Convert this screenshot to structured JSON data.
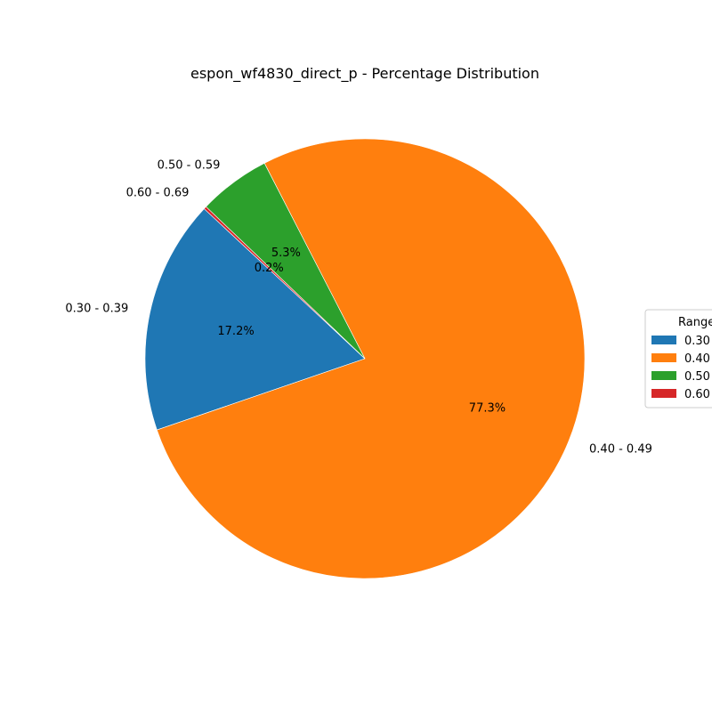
{
  "chart_data": {
    "type": "pie",
    "title": "espon_wf4830_direct_p - Percentage Distribution",
    "slices": [
      {
        "label": "0.30 - 0.39",
        "value": 17.2,
        "pct_text": "17.2%",
        "color": "#1f77b4"
      },
      {
        "label": "0.40 - 0.49",
        "value": 77.3,
        "pct_text": "77.3%",
        "color": "#ff7f0e"
      },
      {
        "label": "0.50 - 0.59",
        "value": 5.3,
        "pct_text": "5.3%",
        "color": "#2ca02c"
      },
      {
        "label": "0.60 - 0.69",
        "value": 0.2,
        "pct_text": "0.2%",
        "color": "#d62728"
      }
    ],
    "legend": {
      "title": "Range",
      "placement": "right",
      "entries": [
        "0.30",
        "0.40",
        "0.50",
        "0.60"
      ]
    }
  }
}
